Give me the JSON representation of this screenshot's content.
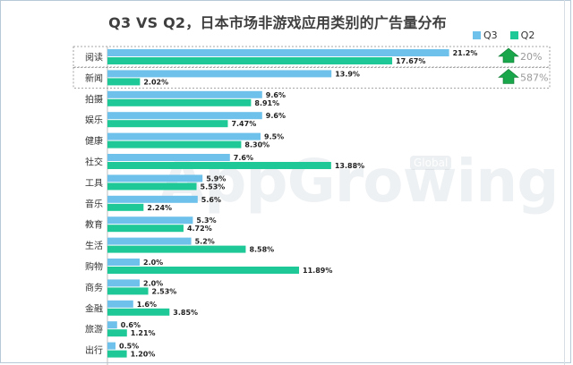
{
  "title": "Q3 VS Q2，日本市场非游戏应用类别的广告量分布",
  "legend": [
    {
      "label": "Q3",
      "color": "#6ec1ea"
    },
    {
      "label": "Q2",
      "color": "#1ec997"
    }
  ],
  "watermark": {
    "text": "AppGrowing",
    "badge": "Global"
  },
  "annotations": [
    {
      "category": "阅读",
      "label": "20%",
      "direction": "up"
    },
    {
      "category": "新闻",
      "label": "587%",
      "direction": "up"
    }
  ],
  "chart_data": {
    "type": "bar",
    "orientation": "horizontal",
    "categories": [
      "阅读",
      "新闻",
      "拍摄",
      "娱乐",
      "健康",
      "社交",
      "工具",
      "音乐",
      "教育",
      "生活",
      "购物",
      "商务",
      "金融",
      "旅游",
      "出行"
    ],
    "series": [
      {
        "name": "Q3",
        "color": "#6ec1ea",
        "values": [
          21.2,
          13.9,
          9.6,
          9.6,
          9.5,
          7.6,
          5.9,
          5.6,
          5.3,
          5.2,
          2.0,
          2.0,
          1.6,
          0.6,
          0.5
        ],
        "labels": [
          "21.2%",
          "13.9%",
          "9.6%",
          "9.6%",
          "9.5%",
          "7.6%",
          "5.9%",
          "5.6%",
          "5.3%",
          "5.2%",
          "2.0%",
          "2.0%",
          "1.6%",
          "0.6%",
          "0.5%"
        ]
      },
      {
        "name": "Q2",
        "color": "#1ec997",
        "values": [
          17.67,
          2.02,
          8.91,
          7.47,
          8.3,
          13.88,
          5.53,
          2.24,
          4.72,
          8.58,
          11.89,
          2.53,
          3.85,
          1.21,
          1.2
        ],
        "labels": [
          "17.67%",
          "2.02%",
          "8.91%",
          "7.47%",
          "8.30%",
          "13.88%",
          "5.53%",
          "2.24%",
          "4.72%",
          "8.58%",
          "11.89%",
          "2.53%",
          "3.85%",
          "1.21%",
          "1.20%"
        ]
      }
    ],
    "xlim": [
      0,
      22
    ],
    "grid": false,
    "legend_position": "top-right"
  }
}
